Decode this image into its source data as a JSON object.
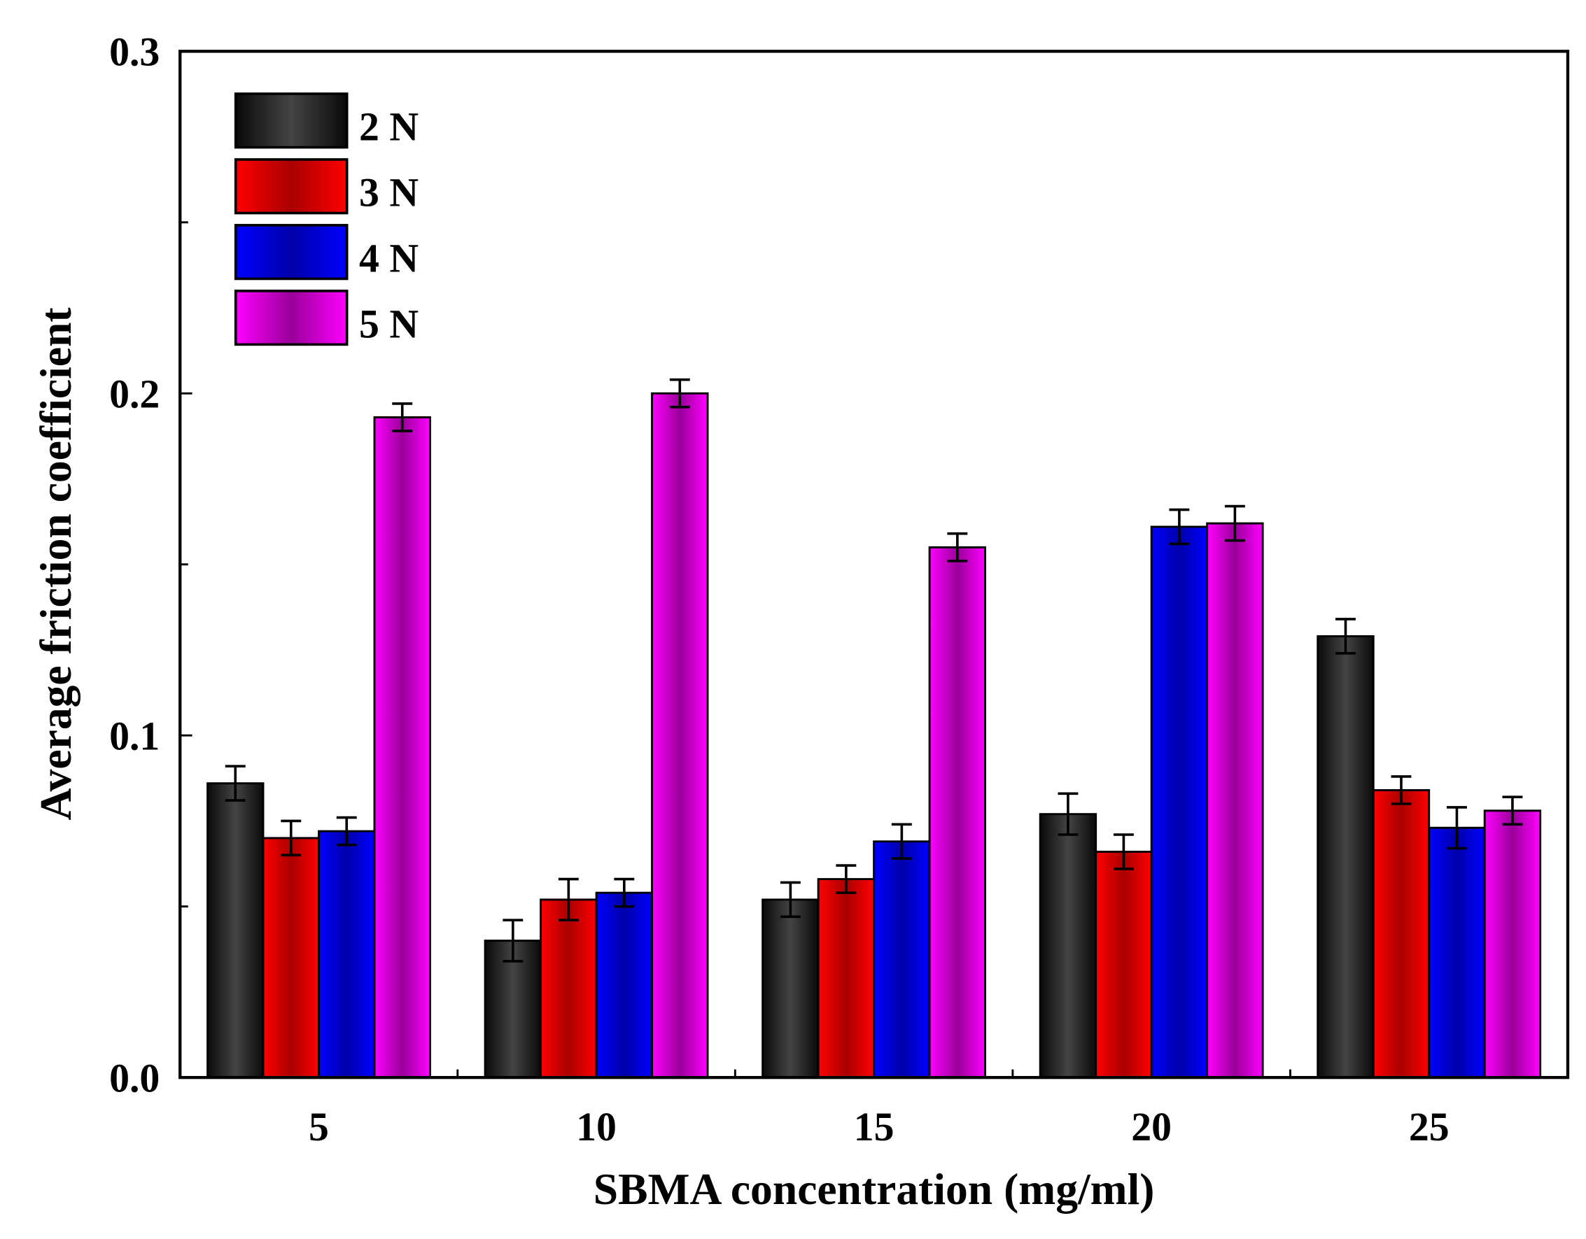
{
  "chart_data": {
    "type": "bar",
    "title": "",
    "xlabel": "SBMA concentration (mg/ml)",
    "ylabel": "Average friction coefficient",
    "ylim": [
      0,
      0.3
    ],
    "yticks": [
      "0.0",
      "0.1",
      "0.2",
      "0.3"
    ],
    "yticks_values": [
      0,
      0.1,
      0.2,
      0.3
    ],
    "categories": [
      "5",
      "10",
      "15",
      "20",
      "25"
    ],
    "legend_position": "top-left",
    "grid": false,
    "series": [
      {
        "name": "2 N",
        "color": "#444444",
        "edge": "#0a0a0a",
        "values": [
          0.086,
          0.04,
          0.052,
          0.077,
          0.129
        ],
        "errors": [
          0.005,
          0.006,
          0.005,
          0.006,
          0.005
        ]
      },
      {
        "name": "3 N",
        "color": "#aa0000",
        "edge": "#ff0000",
        "values": [
          0.07,
          0.052,
          0.058,
          0.066,
          0.084
        ],
        "errors": [
          0.005,
          0.006,
          0.004,
          0.005,
          0.004
        ]
      },
      {
        "name": "4 N",
        "color": "#0000aa",
        "edge": "#0000ff",
        "values": [
          0.072,
          0.054,
          0.069,
          0.161,
          0.073
        ],
        "errors": [
          0.004,
          0.004,
          0.005,
          0.005,
          0.006
        ]
      },
      {
        "name": "5 N",
        "color": "#990099",
        "edge": "#ff00ff",
        "values": [
          0.193,
          0.2,
          0.155,
          0.162,
          0.078
        ],
        "errors": [
          0.004,
          0.004,
          0.004,
          0.005,
          0.004
        ]
      }
    ]
  }
}
